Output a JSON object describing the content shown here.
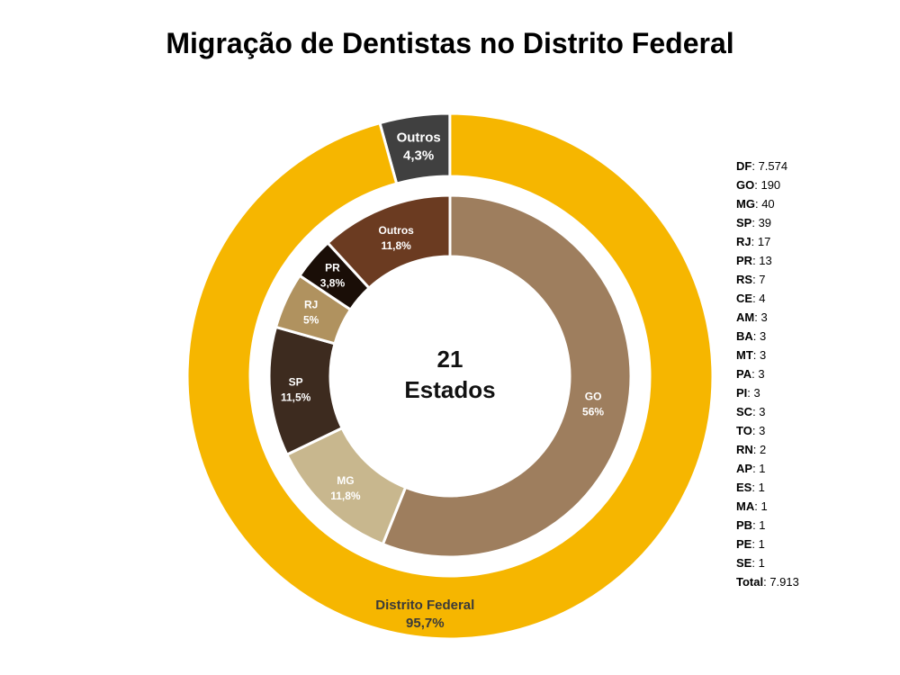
{
  "chart_data": [
    {
      "type": "pie",
      "ring": "outer",
      "slices": [
        {
          "label": "Outros",
          "value_text": "4,3%",
          "value": 4.3,
          "color": "#404040",
          "label_color": "#ffffff"
        },
        {
          "label": "Distrito Federal",
          "value_text": "95,7%",
          "value": 95.7,
          "color": "#F6B600",
          "label_color": "#3a3a3a"
        }
      ]
    },
    {
      "type": "pie",
      "ring": "inner",
      "slices": [
        {
          "label": "GO",
          "value_text": "56%",
          "value": 56,
          "color": "#9E7E5E",
          "label_color": "#ffffff"
        },
        {
          "label": "MG",
          "value_text": "11,8%",
          "value": 11.8,
          "color": "#C8B78E",
          "label_color": "#ffffff"
        },
        {
          "label": "SP",
          "value_text": "11,5%",
          "value": 11.5,
          "color": "#3D2B1F",
          "label_color": "#ffffff"
        },
        {
          "label": "RJ",
          "value_text": "5%",
          "value": 5,
          "color": "#B0925F",
          "label_color": "#ffffff"
        },
        {
          "label": "PR",
          "value_text": "3,8%",
          "value": 3.8,
          "color": "#1A0E07",
          "label_color": "#ffffff"
        },
        {
          "label": "Outros",
          "value_text": "11,8%",
          "value": 11.8,
          "color": "#6B3B21",
          "label_color": "#ffffff"
        }
      ]
    }
  ],
  "title": "Migração de Dentistas no Distrito Federal",
  "center": {
    "line1": "21",
    "line2": "Estados"
  },
  "legend": [
    {
      "key": "DF",
      "value": "7.574"
    },
    {
      "key": "GO",
      "value": "190"
    },
    {
      "key": "MG",
      "value": "40"
    },
    {
      "key": "SP",
      "value": "39"
    },
    {
      "key": "RJ",
      "value": "17"
    },
    {
      "key": "PR",
      "value": "13"
    },
    {
      "key": "RS",
      "value": "7"
    },
    {
      "key": "CE",
      "value": "4"
    },
    {
      "key": "AM",
      "value": "3"
    },
    {
      "key": "BA",
      "value": "3"
    },
    {
      "key": "MT",
      "value": "3"
    },
    {
      "key": "PA",
      "value": "3"
    },
    {
      "key": "PI",
      "value": "3"
    },
    {
      "key": "SC",
      "value": "3"
    },
    {
      "key": "TO",
      "value": "3"
    },
    {
      "key": "RN",
      "value": "2"
    },
    {
      "key": "AP",
      "value": "1"
    },
    {
      "key": "ES",
      "value": "1"
    },
    {
      "key": "MA",
      "value": "1"
    },
    {
      "key": "PB",
      "value": "1"
    },
    {
      "key": "PE",
      "value": "1"
    },
    {
      "key": "SE",
      "value": "1"
    },
    {
      "key": "Total",
      "value": "7.913"
    }
  ]
}
